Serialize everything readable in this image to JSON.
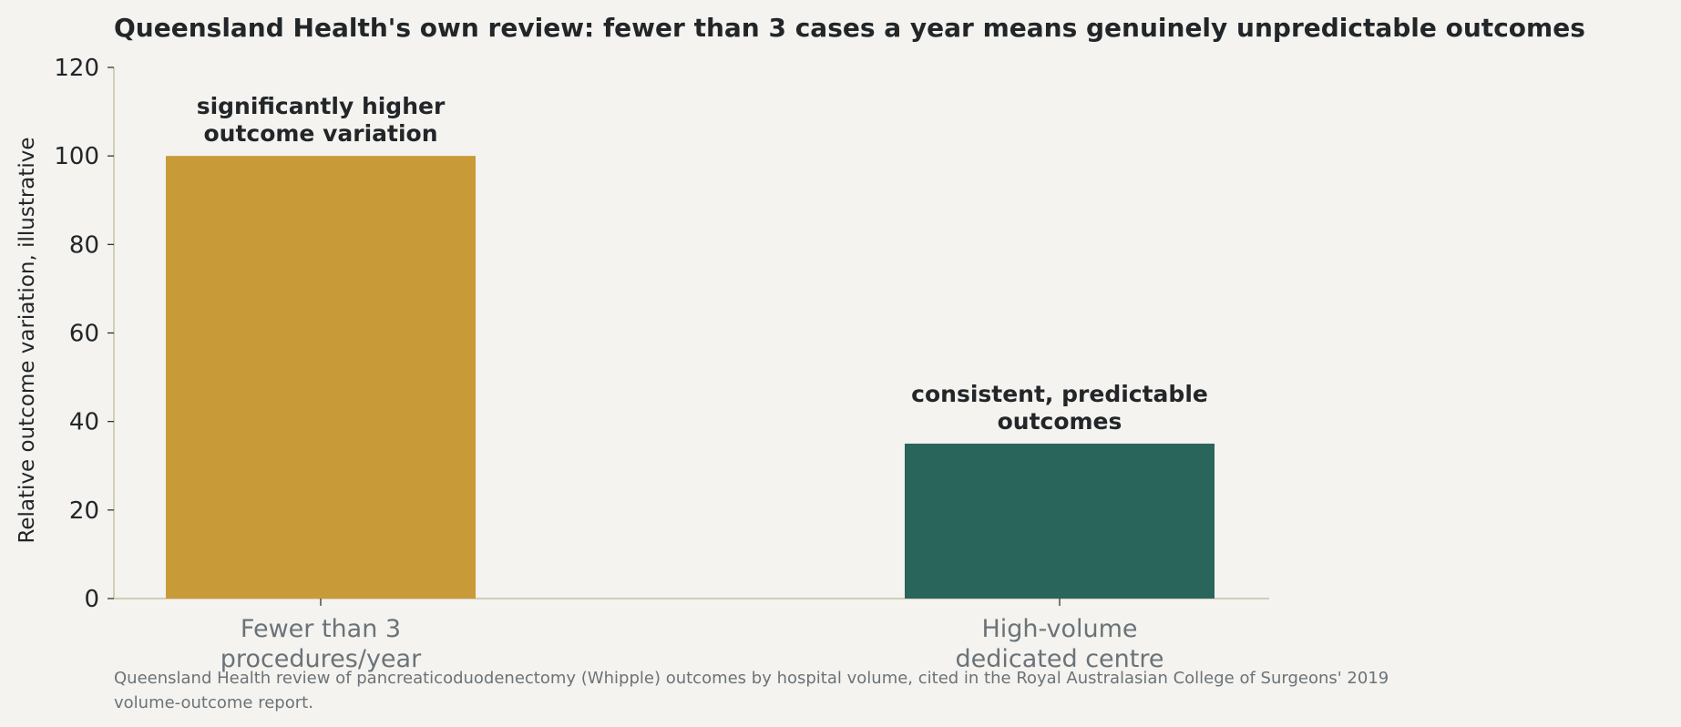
{
  "chart_data": {
    "type": "bar",
    "title": "Queensland Health's own review: fewer than 3 cases a year means genuinely unpredictable outcomes",
    "ylabel": "Relative outcome variation, illustrative",
    "xlabel": "",
    "ylim": [
      0,
      120
    ],
    "yticks": [
      "0",
      "20",
      "40",
      "60",
      "80",
      "100",
      "120"
    ],
    "categories": [
      "Fewer than 3\nprocedures/year",
      "High-volume\ndedicated centre"
    ],
    "values": [
      100,
      35
    ],
    "annotations": [
      "significantly higher\noutcome variation",
      "consistent, predictable\noutcomes"
    ],
    "colors": [
      "#c99a38",
      "#2a655c"
    ],
    "grid": false,
    "legend": "none"
  },
  "source_note": "Queensland Health review of pancreaticoduodenectomy (Whipple) outcomes by hospital volume, cited in the Royal Australasian College of Surgeons' 2019 volume-outcome report.",
  "style": {
    "background": "#f4f3ef",
    "axis_color": "#c8c2a4",
    "text_color": "#222629",
    "muted_text_color": "#6b7378"
  }
}
